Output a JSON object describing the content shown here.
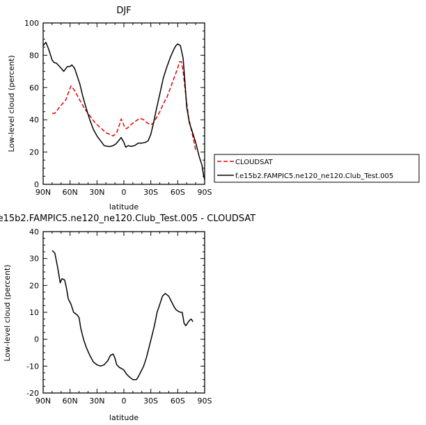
{
  "chart_data": [
    {
      "type": "line",
      "title": "DJF",
      "xlabel": "latitude",
      "ylabel": "Low-level cloud (percent)",
      "xlim": [
        90,
        -90
      ],
      "ylim": [
        0,
        100
      ],
      "x_ticks": [
        90,
        60,
        30,
        0,
        -30,
        -60,
        -90
      ],
      "x_tick_labels": [
        "90N",
        "60N",
        "30N",
        "0",
        "30S",
        "60S",
        "90S"
      ],
      "y_ticks": [
        0,
        20,
        40,
        60,
        80,
        100
      ],
      "y_tick_labels": [
        "0",
        "20",
        "40",
        "60",
        "80",
        "100"
      ],
      "legend_position": "right",
      "series": [
        {
          "name": "CLOUDSAT",
          "color": "#e00000",
          "dash": "dashed",
          "points": [
            [
              80,
              44
            ],
            [
              77,
              44
            ],
            [
              73,
              47
            ],
            [
              70,
              49
            ],
            [
              65,
              52
            ],
            [
              61,
              58
            ],
            [
              59,
              61
            ],
            [
              56,
              59
            ],
            [
              52,
              55
            ],
            [
              48,
              51
            ],
            [
              44,
              47
            ],
            [
              40,
              44
            ],
            [
              36,
              41
            ],
            [
              32,
              38
            ],
            [
              28,
              36
            ],
            [
              24,
              34
            ],
            [
              20,
              32
            ],
            [
              16,
              31
            ],
            [
              12,
              30
            ],
            [
              8,
              32
            ],
            [
              5,
              37
            ],
            [
              3,
              40.5
            ],
            [
              1,
              38
            ],
            [
              -1,
              35
            ],
            [
              -3,
              34.5
            ],
            [
              -6,
              36
            ],
            [
              -10,
              38
            ],
            [
              -14,
              39.5
            ],
            [
              -18,
              41
            ],
            [
              -22,
              40
            ],
            [
              -26,
              38
            ],
            [
              -30,
              37
            ],
            [
              -33,
              38
            ],
            [
              -36,
              41
            ],
            [
              -40,
              45
            ],
            [
              -44,
              50
            ],
            [
              -48,
              54
            ],
            [
              -52,
              60
            ],
            [
              -56,
              66
            ],
            [
              -60,
              72
            ],
            [
              -62,
              76
            ],
            [
              -64,
              76
            ],
            [
              -66,
              70
            ],
            [
              -69,
              55
            ],
            [
              -72,
              42
            ],
            [
              -75,
              34
            ],
            [
              -78,
              27
            ],
            [
              -80,
              21
            ]
          ]
        },
        {
          "name": "f.e15b2.FAMPIC5.ne120_ne120.Club_Test.005",
          "color": "#000000",
          "dash": "solid",
          "points": [
            [
              90,
              86
            ],
            [
              87,
              88
            ],
            [
              84,
              84
            ],
            [
              80,
              77
            ],
            [
              78,
              75.5
            ],
            [
              75,
              75
            ],
            [
              70,
              72
            ],
            [
              67,
              70
            ],
            [
              63,
              73
            ],
            [
              60,
              73
            ],
            [
              58,
              74
            ],
            [
              55,
              72
            ],
            [
              52,
              67
            ],
            [
              49,
              62
            ],
            [
              46,
              55
            ],
            [
              42,
              47
            ],
            [
              38,
              40
            ],
            [
              34,
              34
            ],
            [
              30,
              30
            ],
            [
              26,
              27
            ],
            [
              22,
              24
            ],
            [
              18,
              23.5
            ],
            [
              15,
              23.5
            ],
            [
              12,
              24
            ],
            [
              9,
              25
            ],
            [
              6,
              27
            ],
            [
              3,
              29
            ],
            [
              0,
              26
            ],
            [
              -2,
              23
            ],
            [
              -5,
              24
            ],
            [
              -8,
              23.5
            ],
            [
              -12,
              24
            ],
            [
              -16,
              25.5
            ],
            [
              -20,
              25.5
            ],
            [
              -24,
              26
            ],
            [
              -27,
              27
            ],
            [
              -30,
              31
            ],
            [
              -33,
              38
            ],
            [
              -36,
              46
            ],
            [
              -40,
              56
            ],
            [
              -44,
              66
            ],
            [
              -48,
              73
            ],
            [
              -52,
              79
            ],
            [
              -56,
              84
            ],
            [
              -58,
              86
            ],
            [
              -60,
              87
            ],
            [
              -63,
              86
            ],
            [
              -66,
              78
            ],
            [
              -68,
              64
            ],
            [
              -70,
              48
            ],
            [
              -73,
              38
            ],
            [
              -76,
              33
            ],
            [
              -80,
              26
            ],
            [
              -84,
              17
            ],
            [
              -87,
              12
            ],
            [
              -89,
              5
            ],
            [
              -90,
              3
            ]
          ]
        }
      ]
    },
    {
      "type": "line",
      "title": "f.e15b2.FAMPIC5.ne120_ne120.Club_Test.005 - CLOUDSAT",
      "xlabel": "latitude",
      "ylabel": "Low-level cloud (percent)",
      "xlim": [
        90,
        -90
      ],
      "ylim": [
        -20,
        40
      ],
      "x_ticks": [
        90,
        60,
        30,
        0,
        -30,
        -60,
        -90
      ],
      "x_tick_labels": [
        "90N",
        "60N",
        "30N",
        "0",
        "30S",
        "60S",
        "90S"
      ],
      "y_ticks": [
        -20,
        -10,
        0,
        10,
        20,
        30,
        40
      ],
      "y_tick_labels": [
        "-20",
        "-10",
        "0",
        "10",
        "20",
        "30",
        "40"
      ],
      "series": [
        {
          "color": "#000000",
          "dash": "solid",
          "points": [
            [
              80,
              33
            ],
            [
              77,
              32
            ],
            [
              74,
              27
            ],
            [
              71,
              21
            ],
            [
              69,
              22.5
            ],
            [
              66,
              22
            ],
            [
              64,
              19
            ],
            [
              62,
              15
            ],
            [
              59,
              13
            ],
            [
              56,
              10
            ],
            [
              52,
              9
            ],
            [
              50,
              8
            ],
            [
              48,
              4
            ],
            [
              45,
              0
            ],
            [
              42,
              -3
            ],
            [
              38,
              -6
            ],
            [
              34,
              -8.5
            ],
            [
              30,
              -9.5
            ],
            [
              26,
              -10
            ],
            [
              22,
              -9.5
            ],
            [
              18,
              -8
            ],
            [
              15,
              -6
            ],
            [
              12,
              -5.5
            ],
            [
              10,
              -7
            ],
            [
              8,
              -9.5
            ],
            [
              5,
              -10.5
            ],
            [
              2,
              -11
            ],
            [
              0,
              -11.5
            ],
            [
              -3,
              -13
            ],
            [
              -6,
              -14
            ],
            [
              -10,
              -15
            ],
            [
              -14,
              -15
            ],
            [
              -16,
              -14
            ],
            [
              -19,
              -12
            ],
            [
              -22,
              -10
            ],
            [
              -25,
              -7
            ],
            [
              -28,
              -3
            ],
            [
              -31,
              1
            ],
            [
              -34,
              5
            ],
            [
              -37,
              10
            ],
            [
              -40,
              13
            ],
            [
              -43,
              16
            ],
            [
              -46,
              17
            ],
            [
              -50,
              16
            ],
            [
              -53,
              14
            ],
            [
              -56,
              12
            ],
            [
              -58,
              11
            ],
            [
              -60,
              10.5
            ],
            [
              -63,
              10
            ],
            [
              -65,
              10
            ],
            [
              -67,
              6
            ],
            [
              -69,
              5
            ],
            [
              -71,
              6
            ],
            [
              -73,
              7
            ],
            [
              -75,
              7.5
            ],
            [
              -77,
              6.5
            ]
          ]
        }
      ]
    }
  ]
}
